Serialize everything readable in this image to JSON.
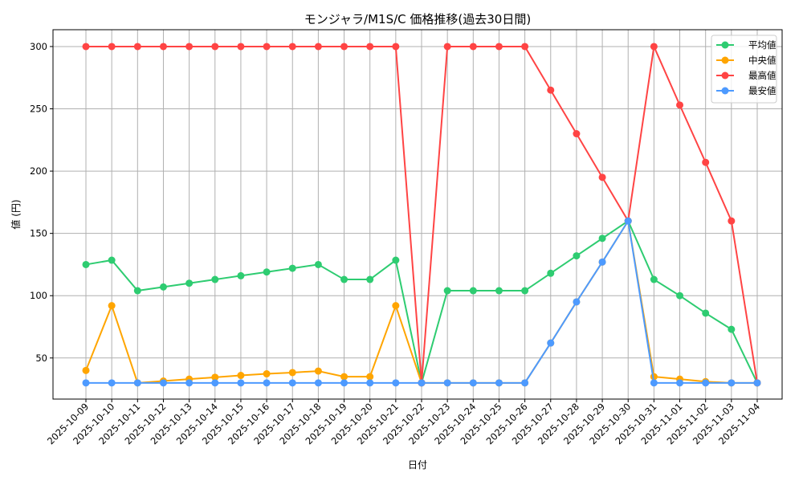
{
  "chart_data": {
    "type": "line",
    "title": "モンジャラ/M1S/C 価格推移(過去30日間)",
    "xlabel": "日付",
    "ylabel": "値 (円)",
    "ylim": [
      17,
      313.5
    ],
    "yticks": [
      50,
      100,
      150,
      200,
      250,
      300
    ],
    "grid": true,
    "legend_position": "top-right",
    "categories": [
      "2025-10-09",
      "2025-10-10",
      "2025-10-11",
      "2025-10-12",
      "2025-10-13",
      "2025-10-14",
      "2025-10-15",
      "2025-10-16",
      "2025-10-17",
      "2025-10-18",
      "2025-10-19",
      "2025-10-20",
      "2025-10-21",
      "2025-10-22",
      "2025-10-23",
      "2025-10-24",
      "2025-10-25",
      "2025-10-26",
      "2025-10-27",
      "2025-10-28",
      "2025-10-29",
      "2025-10-30",
      "2025-10-31",
      "2025-11-01",
      "2025-11-02",
      "2025-11-03",
      "2025-11-04"
    ],
    "series": [
      {
        "name": "平均値",
        "color": "#2ecc71",
        "values": [
          125,
          128.5,
          104,
          107,
          110,
          113,
          116,
          119,
          122,
          125,
          113,
          113,
          128.5,
          30,
          104,
          104,
          104,
          104,
          118,
          132,
          146,
          160,
          113,
          100,
          86,
          73,
          30
        ]
      },
      {
        "name": "中央値",
        "color": "#ffa500",
        "values": [
          40,
          92,
          30,
          31.5,
          33,
          34.5,
          36,
          37.3,
          38.3,
          39.5,
          35,
          35,
          92,
          30,
          30,
          30,
          30,
          30,
          62,
          95,
          127,
          160,
          35,
          33,
          31,
          30,
          30
        ]
      },
      {
        "name": "最高値",
        "color": "#ff4444",
        "values": [
          300,
          300,
          300,
          300,
          300,
          300,
          300,
          300,
          300,
          300,
          300,
          300,
          300,
          30,
          300,
          300,
          300,
          300,
          265,
          230,
          195,
          160,
          300,
          253,
          207,
          160,
          30
        ]
      },
      {
        "name": "最安値",
        "color": "#4d9aff",
        "values": [
          30,
          30,
          30,
          30,
          30,
          30,
          30,
          30,
          30,
          30,
          30,
          30,
          30,
          30,
          30,
          30,
          30,
          30,
          62,
          95,
          127,
          160,
          30,
          30,
          30,
          30,
          30
        ]
      }
    ]
  }
}
